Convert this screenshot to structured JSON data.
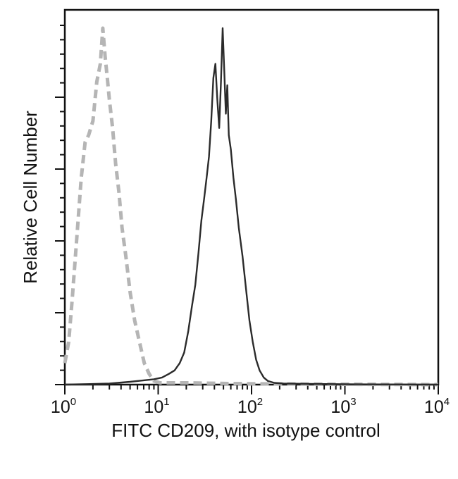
{
  "chart_data": {
    "type": "line",
    "title": "",
    "xlabel": "FITC CD209, with isotype control",
    "ylabel": "Relative Cell Number",
    "x_scale": "log",
    "xlim": [
      1,
      10000
    ],
    "ylim": [
      0,
      100
    ],
    "x_ticks": [
      {
        "base": "10",
        "exp": "0",
        "value": 1
      },
      {
        "base": "10",
        "exp": "1",
        "value": 10
      },
      {
        "base": "10",
        "exp": "2",
        "value": 100
      },
      {
        "base": "10",
        "exp": "3",
        "value": 1000
      },
      {
        "base": "10",
        "exp": "4",
        "value": 10000
      }
    ],
    "grid": false,
    "legend": "none",
    "series": [
      {
        "role": "isotype control",
        "color": "#b5b5b5",
        "style": "dashed",
        "points": [
          [
            1.0,
            6
          ],
          [
            1.1,
            12
          ],
          [
            1.2,
            24
          ],
          [
            1.35,
            42
          ],
          [
            1.5,
            58
          ],
          [
            1.65,
            68
          ],
          [
            1.8,
            70
          ],
          [
            2.0,
            74
          ],
          [
            2.2,
            85
          ],
          [
            2.4,
            90
          ],
          [
            2.55,
            100
          ],
          [
            2.7,
            92
          ],
          [
            2.85,
            86
          ],
          [
            3.0,
            80
          ],
          [
            3.25,
            72
          ],
          [
            3.5,
            62
          ],
          [
            3.8,
            54
          ],
          [
            4.1,
            44
          ],
          [
            4.5,
            36
          ],
          [
            5.0,
            26
          ],
          [
            5.6,
            18
          ],
          [
            6.3,
            12
          ],
          [
            7.1,
            6
          ],
          [
            8.0,
            3
          ],
          [
            9.0,
            1
          ],
          [
            10.5,
            0.5
          ],
          [
            20,
            0.5
          ],
          [
            60,
            0.3
          ],
          [
            150,
            0.2
          ],
          [
            1000,
            0.1
          ],
          [
            10000,
            0
          ]
        ]
      },
      {
        "role": "FITC CD209",
        "color": "#2b2b2b",
        "style": "solid",
        "points": [
          [
            1.0,
            0
          ],
          [
            3.0,
            0.3
          ],
          [
            5.0,
            0.8
          ],
          [
            7.0,
            1.2
          ],
          [
            9.0,
            1.5
          ],
          [
            11,
            2
          ],
          [
            13,
            3
          ],
          [
            15,
            4
          ],
          [
            17,
            6
          ],
          [
            19,
            9
          ],
          [
            21,
            15
          ],
          [
            23,
            22
          ],
          [
            25,
            28
          ],
          [
            27,
            37
          ],
          [
            29,
            46
          ],
          [
            31,
            52
          ],
          [
            33,
            58
          ],
          [
            35,
            64
          ],
          [
            37,
            74
          ],
          [
            39,
            86
          ],
          [
            41,
            90
          ],
          [
            43,
            80
          ],
          [
            45,
            72
          ],
          [
            47,
            85
          ],
          [
            49,
            100
          ],
          [
            51,
            88
          ],
          [
            53,
            76
          ],
          [
            55,
            84
          ],
          [
            57,
            70
          ],
          [
            60,
            66
          ],
          [
            64,
            58
          ],
          [
            68,
            52
          ],
          [
            73,
            44
          ],
          [
            80,
            36
          ],
          [
            88,
            26
          ],
          [
            95,
            18
          ],
          [
            103,
            12
          ],
          [
            112,
            7
          ],
          [
            122,
            4
          ],
          [
            135,
            2
          ],
          [
            150,
            1
          ],
          [
            175,
            0.5
          ],
          [
            220,
            0.3
          ],
          [
            400,
            0.2
          ],
          [
            1000,
            0.1
          ],
          [
            10000,
            0
          ]
        ]
      }
    ]
  }
}
